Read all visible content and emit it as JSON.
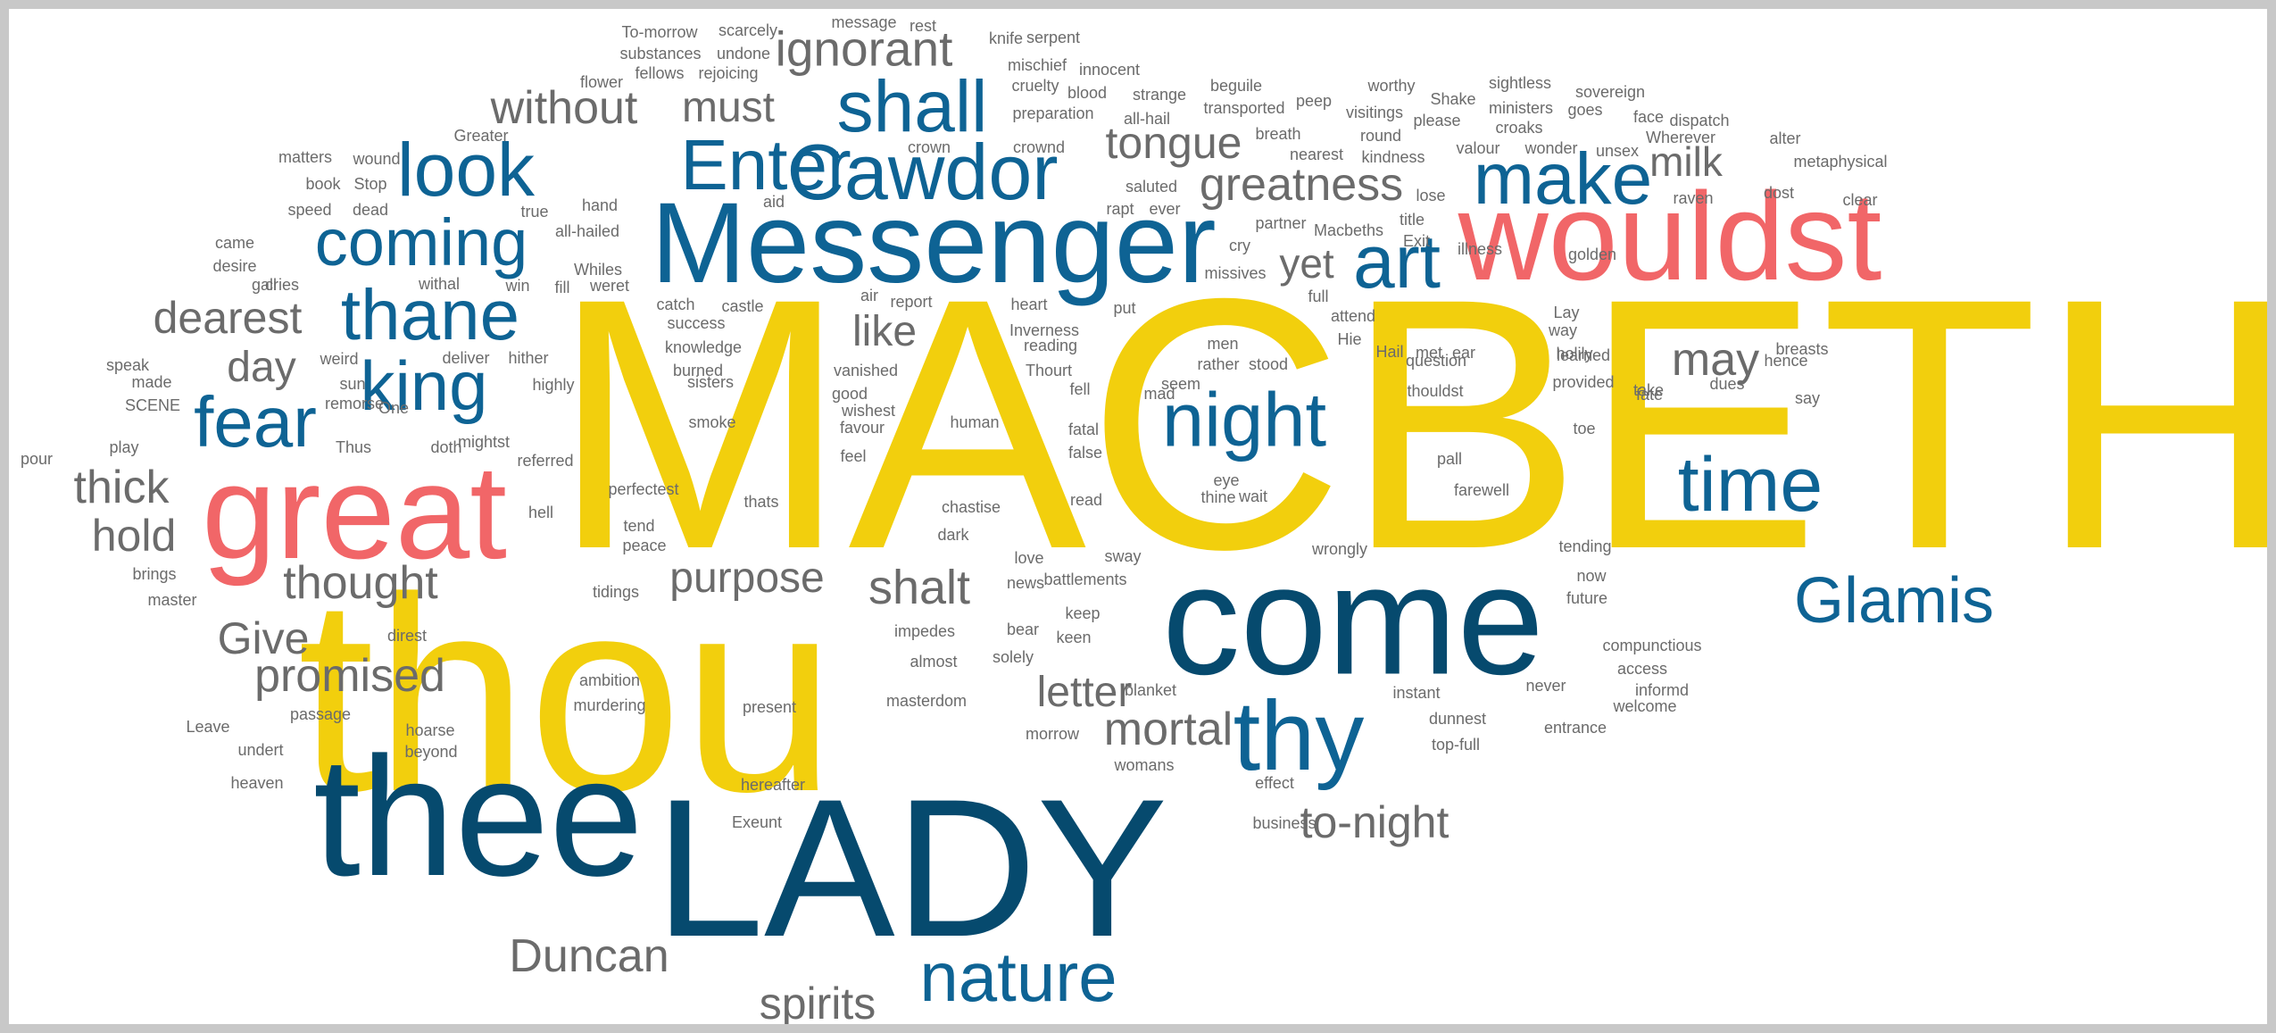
{
  "palette": {
    "yellow": "#f2cf0d",
    "red": "#f16668",
    "blue": "#0e6394",
    "navy": "#064a6e",
    "gray": "#6b6b6b"
  },
  "words": [
    {
      "text": "MACBETH",
      "color": "yellow"
    },
    {
      "text": "thou",
      "color": "yellow"
    },
    {
      "text": "LADY",
      "color": "navy"
    },
    {
      "text": "thee",
      "color": "navy"
    },
    {
      "text": "come",
      "color": "navy"
    },
    {
      "text": "Messenger",
      "color": "blue"
    },
    {
      "text": "wouldst",
      "color": "red"
    },
    {
      "text": "great",
      "color": "red"
    },
    {
      "text": "Cawdor",
      "color": "blue"
    },
    {
      "text": "Enter",
      "color": "blue"
    },
    {
      "text": "shall",
      "color": "blue"
    },
    {
      "text": "look",
      "color": "blue"
    },
    {
      "text": "coming",
      "color": "blue"
    },
    {
      "text": "thane",
      "color": "blue"
    },
    {
      "text": "king",
      "color": "blue"
    },
    {
      "text": "fear",
      "color": "blue"
    },
    {
      "text": "night",
      "color": "blue"
    },
    {
      "text": "make",
      "color": "blue"
    },
    {
      "text": "art",
      "color": "blue"
    },
    {
      "text": "time",
      "color": "blue"
    },
    {
      "text": "Glamis",
      "color": "blue"
    },
    {
      "text": "thy",
      "color": "blue"
    },
    {
      "text": "nature",
      "color": "blue"
    },
    {
      "text": "ignorant",
      "color": "gray"
    },
    {
      "text": "without",
      "color": "gray"
    },
    {
      "text": "must",
      "color": "gray"
    },
    {
      "text": "tongue",
      "color": "gray"
    },
    {
      "text": "greatness",
      "color": "gray"
    },
    {
      "text": "milk",
      "color": "gray"
    },
    {
      "text": "yet",
      "color": "gray"
    },
    {
      "text": "dearest",
      "color": "gray"
    },
    {
      "text": "day",
      "color": "gray"
    },
    {
      "text": "like",
      "color": "gray"
    },
    {
      "text": "may",
      "color": "gray"
    },
    {
      "text": "thick",
      "color": "gray"
    },
    {
      "text": "hold",
      "color": "gray"
    },
    {
      "text": "thought",
      "color": "gray"
    },
    {
      "text": "purpose",
      "color": "gray"
    },
    {
      "text": "shalt",
      "color": "gray"
    },
    {
      "text": "Give",
      "color": "gray"
    },
    {
      "text": "promised",
      "color": "gray"
    },
    {
      "text": "letter",
      "color": "gray"
    },
    {
      "text": "mortal",
      "color": "gray"
    },
    {
      "text": "to-night",
      "color": "gray"
    },
    {
      "text": "Duncan",
      "color": "gray"
    },
    {
      "text": "spirits",
      "color": "gray"
    },
    {
      "text": "To-morrow",
      "color": "gray"
    },
    {
      "text": "scarcely",
      "color": "gray"
    },
    {
      "text": "message",
      "color": "gray"
    },
    {
      "text": "rest",
      "color": "gray"
    },
    {
      "text": "knife",
      "color": "gray"
    },
    {
      "text": "serpent",
      "color": "gray"
    },
    {
      "text": "substances",
      "color": "gray"
    },
    {
      "text": "undone",
      "color": "gray"
    },
    {
      "text": "fellows",
      "color": "gray"
    },
    {
      "text": "rejoicing",
      "color": "gray"
    },
    {
      "text": "mischief",
      "color": "gray"
    },
    {
      "text": "innocent",
      "color": "gray"
    },
    {
      "text": "flower",
      "color": "gray"
    },
    {
      "text": "cruelty",
      "color": "gray"
    },
    {
      "text": "blood",
      "color": "gray"
    },
    {
      "text": "strange",
      "color": "gray"
    },
    {
      "text": "beguile",
      "color": "gray"
    },
    {
      "text": "worthy",
      "color": "gray"
    },
    {
      "text": "Shake",
      "color": "gray"
    },
    {
      "text": "sightless",
      "color": "gray"
    },
    {
      "text": "sovereign",
      "color": "gray"
    },
    {
      "text": "preparation",
      "color": "gray"
    },
    {
      "text": "all-hail",
      "color": "gray"
    },
    {
      "text": "transported",
      "color": "gray"
    },
    {
      "text": "peep",
      "color": "gray"
    },
    {
      "text": "visitings",
      "color": "gray"
    },
    {
      "text": "please",
      "color": "gray"
    },
    {
      "text": "ministers",
      "color": "gray"
    },
    {
      "text": "goes",
      "color": "gray"
    },
    {
      "text": "face",
      "color": "gray"
    },
    {
      "text": "dispatch",
      "color": "gray"
    },
    {
      "text": "Greater",
      "color": "gray"
    },
    {
      "text": "crown",
      "color": "gray"
    },
    {
      "text": "crownd",
      "color": "gray"
    },
    {
      "text": "breath",
      "color": "gray"
    },
    {
      "text": "round",
      "color": "gray"
    },
    {
      "text": "croaks",
      "color": "gray"
    },
    {
      "text": "Wherever",
      "color": "gray"
    },
    {
      "text": "alter",
      "color": "gray"
    },
    {
      "text": "matters",
      "color": "gray"
    },
    {
      "text": "wound",
      "color": "gray"
    },
    {
      "text": "nearest",
      "color": "gray"
    },
    {
      "text": "kindness",
      "color": "gray"
    },
    {
      "text": "valour",
      "color": "gray"
    },
    {
      "text": "wonder",
      "color": "gray"
    },
    {
      "text": "unsex",
      "color": "gray"
    },
    {
      "text": "metaphysical",
      "color": "gray"
    },
    {
      "text": "book",
      "color": "gray"
    },
    {
      "text": "Stop",
      "color": "gray"
    },
    {
      "text": "saluted",
      "color": "gray"
    },
    {
      "text": "lose",
      "color": "gray"
    },
    {
      "text": "raven",
      "color": "gray"
    },
    {
      "text": "dost",
      "color": "gray"
    },
    {
      "text": "clear",
      "color": "gray"
    },
    {
      "text": "speed",
      "color": "gray"
    },
    {
      "text": "dead",
      "color": "gray"
    },
    {
      "text": "hand",
      "color": "gray"
    },
    {
      "text": "aid",
      "color": "gray"
    },
    {
      "text": "rapt",
      "color": "gray"
    },
    {
      "text": "ever",
      "color": "gray"
    },
    {
      "text": "true",
      "color": "gray"
    },
    {
      "text": "title",
      "color": "gray"
    },
    {
      "text": "partner",
      "color": "gray"
    },
    {
      "text": "Macbeths",
      "color": "gray"
    },
    {
      "text": "all-hailed",
      "color": "gray"
    },
    {
      "text": "Exit",
      "color": "gray"
    },
    {
      "text": "illness",
      "color": "gray"
    },
    {
      "text": "came",
      "color": "gray"
    },
    {
      "text": "cry",
      "color": "gray"
    },
    {
      "text": "golden",
      "color": "gray"
    },
    {
      "text": "desire",
      "color": "gray"
    },
    {
      "text": "Whiles",
      "color": "gray"
    },
    {
      "text": "missives",
      "color": "gray"
    },
    {
      "text": "gall",
      "color": "gray"
    },
    {
      "text": "cries",
      "color": "gray"
    },
    {
      "text": "withal",
      "color": "gray"
    },
    {
      "text": "win",
      "color": "gray"
    },
    {
      "text": "fill",
      "color": "gray"
    },
    {
      "text": "weret",
      "color": "gray"
    },
    {
      "text": "catch",
      "color": "gray"
    },
    {
      "text": "castle",
      "color": "gray"
    },
    {
      "text": "air",
      "color": "gray"
    },
    {
      "text": "report",
      "color": "gray"
    },
    {
      "text": "heart",
      "color": "gray"
    },
    {
      "text": "put",
      "color": "gray"
    },
    {
      "text": "full",
      "color": "gray"
    },
    {
      "text": "attend",
      "color": "gray"
    },
    {
      "text": "Lay",
      "color": "gray"
    },
    {
      "text": "way",
      "color": "gray"
    },
    {
      "text": "success",
      "color": "gray"
    },
    {
      "text": "Inverness",
      "color": "gray"
    },
    {
      "text": "men",
      "color": "gray"
    },
    {
      "text": "Hie",
      "color": "gray"
    },
    {
      "text": "knowledge",
      "color": "gray"
    },
    {
      "text": "reading",
      "color": "gray"
    },
    {
      "text": "Hail",
      "color": "gray"
    },
    {
      "text": "met",
      "color": "gray"
    },
    {
      "text": "holily",
      "color": "gray"
    },
    {
      "text": "breasts",
      "color": "gray"
    },
    {
      "text": "speak",
      "color": "gray"
    },
    {
      "text": "weird",
      "color": "gray"
    },
    {
      "text": "deliver",
      "color": "gray"
    },
    {
      "text": "hither",
      "color": "gray"
    },
    {
      "text": "burned",
      "color": "gray"
    },
    {
      "text": "vanished",
      "color": "gray"
    },
    {
      "text": "Thourt",
      "color": "gray"
    },
    {
      "text": "rather",
      "color": "gray"
    },
    {
      "text": "stood",
      "color": "gray"
    },
    {
      "text": "question",
      "color": "gray"
    },
    {
      "text": "ear",
      "color": "gray"
    },
    {
      "text": "learned",
      "color": "gray"
    },
    {
      "text": "hence",
      "color": "gray"
    },
    {
      "text": "made",
      "color": "gray"
    },
    {
      "text": "sun",
      "color": "gray"
    },
    {
      "text": "highly",
      "color": "gray"
    },
    {
      "text": "sisters",
      "color": "gray"
    },
    {
      "text": "good",
      "color": "gray"
    },
    {
      "text": "fell",
      "color": "gray"
    },
    {
      "text": "mad",
      "color": "gray"
    },
    {
      "text": "seem",
      "color": "gray"
    },
    {
      "text": "thouldst",
      "color": "gray"
    },
    {
      "text": "provided",
      "color": "gray"
    },
    {
      "text": "take",
      "color": "gray"
    },
    {
      "text": "dues",
      "color": "gray"
    },
    {
      "text": "SCENE",
      "color": "gray"
    },
    {
      "text": "remorse",
      "color": "gray"
    },
    {
      "text": "wishest",
      "color": "gray"
    },
    {
      "text": "fate",
      "color": "gray"
    },
    {
      "text": "say",
      "color": "gray"
    },
    {
      "text": "One",
      "color": "gray"
    },
    {
      "text": "smoke",
      "color": "gray"
    },
    {
      "text": "human",
      "color": "gray"
    },
    {
      "text": "toe",
      "color": "gray"
    },
    {
      "text": "play",
      "color": "gray"
    },
    {
      "text": "Thus",
      "color": "gray"
    },
    {
      "text": "doth",
      "color": "gray"
    },
    {
      "text": "mightst",
      "color": "gray"
    },
    {
      "text": "favour",
      "color": "gray"
    },
    {
      "text": "fatal",
      "color": "gray"
    },
    {
      "text": "pall",
      "color": "gray"
    },
    {
      "text": "pour",
      "color": "gray"
    },
    {
      "text": "referred",
      "color": "gray"
    },
    {
      "text": "feel",
      "color": "gray"
    },
    {
      "text": "false",
      "color": "gray"
    },
    {
      "text": "eye",
      "color": "gray"
    },
    {
      "text": "perfectest",
      "color": "gray"
    },
    {
      "text": "thine",
      "color": "gray"
    },
    {
      "text": "wait",
      "color": "gray"
    },
    {
      "text": "farewell",
      "color": "gray"
    },
    {
      "text": "hell",
      "color": "gray"
    },
    {
      "text": "thats",
      "color": "gray"
    },
    {
      "text": "chastise",
      "color": "gray"
    },
    {
      "text": "read",
      "color": "gray"
    },
    {
      "text": "tend",
      "color": "gray"
    },
    {
      "text": "dark",
      "color": "gray"
    },
    {
      "text": "peace",
      "color": "gray"
    },
    {
      "text": "love",
      "color": "gray"
    },
    {
      "text": "sway",
      "color": "gray"
    },
    {
      "text": "wrongly",
      "color": "gray"
    },
    {
      "text": "tending",
      "color": "gray"
    },
    {
      "text": "brings",
      "color": "gray"
    },
    {
      "text": "battlements",
      "color": "gray"
    },
    {
      "text": "news",
      "color": "gray"
    },
    {
      "text": "now",
      "color": "gray"
    },
    {
      "text": "master",
      "color": "gray"
    },
    {
      "text": "tidings",
      "color": "gray"
    },
    {
      "text": "future",
      "color": "gray"
    },
    {
      "text": "keep",
      "color": "gray"
    },
    {
      "text": "direst",
      "color": "gray"
    },
    {
      "text": "impedes",
      "color": "gray"
    },
    {
      "text": "bear",
      "color": "gray"
    },
    {
      "text": "keen",
      "color": "gray"
    },
    {
      "text": "compunctious",
      "color": "gray"
    },
    {
      "text": "solely",
      "color": "gray"
    },
    {
      "text": "almost",
      "color": "gray"
    },
    {
      "text": "access",
      "color": "gray"
    },
    {
      "text": "ambition",
      "color": "gray"
    },
    {
      "text": "blanket",
      "color": "gray"
    },
    {
      "text": "instant",
      "color": "gray"
    },
    {
      "text": "never",
      "color": "gray"
    },
    {
      "text": "informd",
      "color": "gray"
    },
    {
      "text": "masterdom",
      "color": "gray"
    },
    {
      "text": "murdering",
      "color": "gray"
    },
    {
      "text": "present",
      "color": "gray"
    },
    {
      "text": "welcome",
      "color": "gray"
    },
    {
      "text": "passage",
      "color": "gray"
    },
    {
      "text": "dunnest",
      "color": "gray"
    },
    {
      "text": "Leave",
      "color": "gray"
    },
    {
      "text": "hoarse",
      "color": "gray"
    },
    {
      "text": "morrow",
      "color": "gray"
    },
    {
      "text": "entrance",
      "color": "gray"
    },
    {
      "text": "beyond",
      "color": "gray"
    },
    {
      "text": "top-full",
      "color": "gray"
    },
    {
      "text": "undert",
      "color": "gray"
    },
    {
      "text": "womans",
      "color": "gray"
    },
    {
      "text": "heaven",
      "color": "gray"
    },
    {
      "text": "hereafter",
      "color": "gray"
    },
    {
      "text": "effect",
      "color": "gray"
    },
    {
      "text": "business",
      "color": "gray"
    },
    {
      "text": "Exeunt",
      "color": "gray"
    }
  ]
}
